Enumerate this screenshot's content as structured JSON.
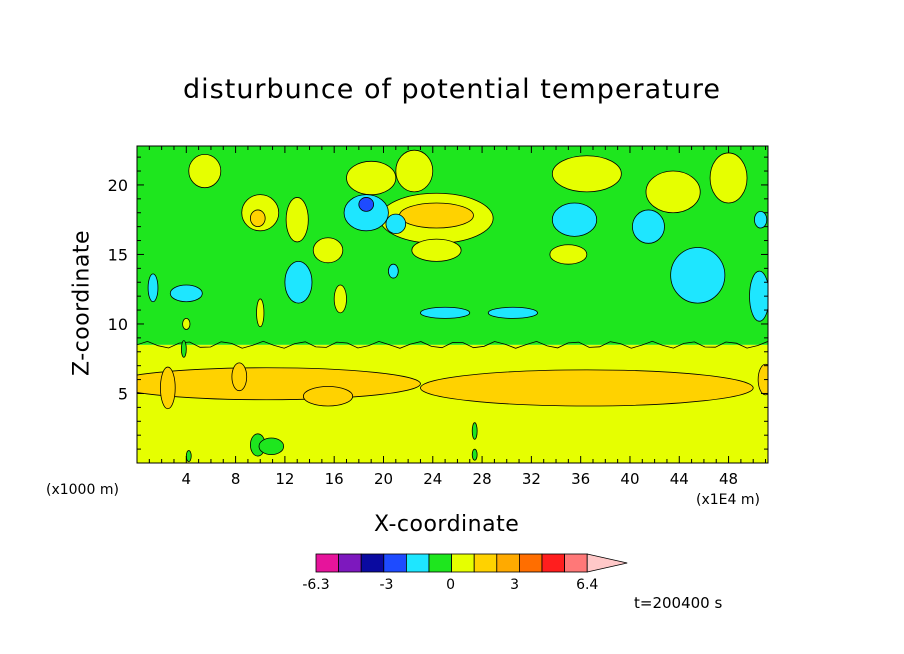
{
  "chart_data": {
    "type": "heatmap",
    "title": "disturbunce of potential temperature",
    "xlabel": "X-coordinate",
    "ylabel": "Z-coordinate",
    "x_unit_left": "(x1000 m)",
    "x_unit_right": "(x1E4 m)",
    "time_label": "t=200400 s",
    "x_ticks": [
      4,
      8,
      12,
      16,
      20,
      24,
      28,
      32,
      36,
      40,
      44,
      48
    ],
    "y_ticks": [
      5,
      10,
      15,
      20
    ],
    "xlim": [
      0,
      51.2
    ],
    "ylim": [
      0,
      22.8
    ],
    "colorbar": {
      "labels": [
        "-6.3",
        "-3",
        "0",
        "3",
        "6.4"
      ],
      "label_values": [
        -6.3,
        -3,
        0,
        3,
        6.4
      ],
      "colors": [
        "#e6149b",
        "#7d18be",
        "#0a0aa0",
        "#1e4bff",
        "#1ee6ff",
        "#1ee61e",
        "#e6ff00",
        "#ffd200",
        "#ffaa00",
        "#ff6e00",
        "#ff1e1e",
        "#ff7878",
        "#ffc8c8"
      ]
    },
    "background_layers": [
      {
        "name": "lower",
        "z_range": [
          0,
          8.5
        ],
        "color": "#e6ff00"
      },
      {
        "name": "upper",
        "z_range": [
          8.5,
          22.8
        ],
        "color": "#1ee61e"
      }
    ],
    "regions": [
      {
        "x": 10.5,
        "z": 5.7,
        "rx": 12.5,
        "rz": 1.15,
        "color": "#ffd200"
      },
      {
        "x": 15.5,
        "z": 4.8,
        "rx": 2,
        "rz": 0.7,
        "color": "#ffd200"
      },
      {
        "x": 36.5,
        "z": 5.4,
        "rx": 13.5,
        "rz": 1.3,
        "color": "#ffd200"
      },
      {
        "x": 2.5,
        "z": 5.4,
        "rx": 0.6,
        "rz": 1.5,
        "color": "#ffd200"
      },
      {
        "x": 8.3,
        "z": 6.2,
        "rx": 0.6,
        "rz": 1.0,
        "color": "#ffd200"
      },
      {
        "x": 51.0,
        "z": 6.0,
        "rx": 0.6,
        "rz": 1.1,
        "color": "#ffd200"
      },
      {
        "x": 24.3,
        "z": 17.6,
        "rx": 4.6,
        "rz": 1.8,
        "color": "#e6ff00"
      },
      {
        "x": 24.3,
        "z": 17.8,
        "rx": 3.0,
        "rz": 0.9,
        "color": "#ffd200"
      },
      {
        "x": 24.3,
        "z": 15.3,
        "rx": 2.0,
        "rz": 0.8,
        "color": "#e6ff00"
      },
      {
        "x": 15.5,
        "z": 15.3,
        "rx": 1.2,
        "rz": 0.9,
        "color": "#e6ff00"
      },
      {
        "x": 19.0,
        "z": 20.5,
        "rx": 2.0,
        "rz": 1.2,
        "color": "#e6ff00"
      },
      {
        "x": 22.5,
        "z": 21.0,
        "rx": 1.5,
        "rz": 1.5,
        "color": "#e6ff00"
      },
      {
        "x": 13.0,
        "z": 17.5,
        "rx": 0.9,
        "rz": 1.6,
        "color": "#e6ff00"
      },
      {
        "x": 5.5,
        "z": 21.0,
        "rx": 1.3,
        "rz": 1.2,
        "color": "#e6ff00"
      },
      {
        "x": 10.0,
        "z": 18.0,
        "rx": 1.5,
        "rz": 1.3,
        "color": "#e6ff00"
      },
      {
        "x": 36.5,
        "z": 20.8,
        "rx": 2.8,
        "rz": 1.3,
        "color": "#e6ff00"
      },
      {
        "x": 43.5,
        "z": 19.5,
        "rx": 2.2,
        "rz": 1.5,
        "color": "#e6ff00"
      },
      {
        "x": 48.0,
        "z": 20.5,
        "rx": 1.5,
        "rz": 1.8,
        "color": "#e6ff00"
      },
      {
        "x": 35.0,
        "z": 15.0,
        "rx": 1.5,
        "rz": 0.7,
        "color": "#e6ff00"
      },
      {
        "x": 9.8,
        "z": 17.6,
        "rx": 0.6,
        "rz": 0.6,
        "color": "#ffd200"
      },
      {
        "x": 10.0,
        "z": 10.8,
        "rx": 0.3,
        "rz": 1.0,
        "color": "#e6ff00"
      },
      {
        "x": 16.5,
        "z": 11.8,
        "rx": 0.5,
        "rz": 1.0,
        "color": "#e6ff00"
      },
      {
        "x": 18.6,
        "z": 18.0,
        "rx": 1.8,
        "rz": 1.3,
        "color": "#1ee6ff"
      },
      {
        "x": 18.6,
        "z": 18.6,
        "rx": 0.6,
        "rz": 0.5,
        "color": "#1e4bff"
      },
      {
        "x": 13.1,
        "z": 13.0,
        "rx": 1.1,
        "rz": 1.5,
        "color": "#1ee6ff"
      },
      {
        "x": 21.0,
        "z": 17.2,
        "rx": 0.8,
        "rz": 0.7,
        "color": "#1ee6ff"
      },
      {
        "x": 35.5,
        "z": 17.5,
        "rx": 1.8,
        "rz": 1.2,
        "color": "#1ee6ff"
      },
      {
        "x": 45.5,
        "z": 13.5,
        "rx": 2.2,
        "rz": 2.0,
        "color": "#1ee6ff"
      },
      {
        "x": 4.0,
        "z": 12.2,
        "rx": 1.3,
        "rz": 0.6,
        "color": "#1ee6ff"
      },
      {
        "x": 1.3,
        "z": 12.6,
        "rx": 0.4,
        "rz": 1.0,
        "color": "#1ee6ff"
      },
      {
        "x": 20.8,
        "z": 13.8,
        "rx": 0.4,
        "rz": 0.5,
        "color": "#1ee6ff"
      },
      {
        "x": 50.5,
        "z": 12.0,
        "rx": 0.8,
        "rz": 1.8,
        "color": "#1ee6ff"
      },
      {
        "x": 41.5,
        "z": 17.0,
        "rx": 1.3,
        "rz": 1.2,
        "color": "#1ee6ff"
      },
      {
        "x": 50.6,
        "z": 17.5,
        "rx": 0.5,
        "rz": 0.6,
        "color": "#1ee6ff"
      },
      {
        "x": 25.0,
        "z": 10.8,
        "rx": 2.0,
        "rz": 0.4,
        "color": "#1ee6ff"
      },
      {
        "x": 30.5,
        "z": 10.8,
        "rx": 2.0,
        "rz": 0.4,
        "color": "#1ee6ff"
      },
      {
        "x": 9.8,
        "z": 1.3,
        "rx": 0.6,
        "rz": 0.8,
        "color": "#1ee61e"
      },
      {
        "x": 10.9,
        "z": 1.2,
        "rx": 1.0,
        "rz": 0.6,
        "color": "#1ee61e"
      },
      {
        "x": 27.4,
        "z": 2.3,
        "rx": 0.2,
        "rz": 0.6,
        "color": "#1ee61e"
      },
      {
        "x": 27.4,
        "z": 0.6,
        "rx": 0.2,
        "rz": 0.4,
        "color": "#1ee61e"
      },
      {
        "x": 4.2,
        "z": 0.5,
        "rx": 0.2,
        "rz": 0.4,
        "color": "#1ee61e"
      },
      {
        "x": 4.0,
        "z": 10.0,
        "rx": 0.3,
        "rz": 0.4,
        "color": "#e6ff00"
      },
      {
        "x": 3.8,
        "z": 8.2,
        "rx": 0.2,
        "rz": 0.6,
        "color": "#1ee61e"
      }
    ]
  }
}
